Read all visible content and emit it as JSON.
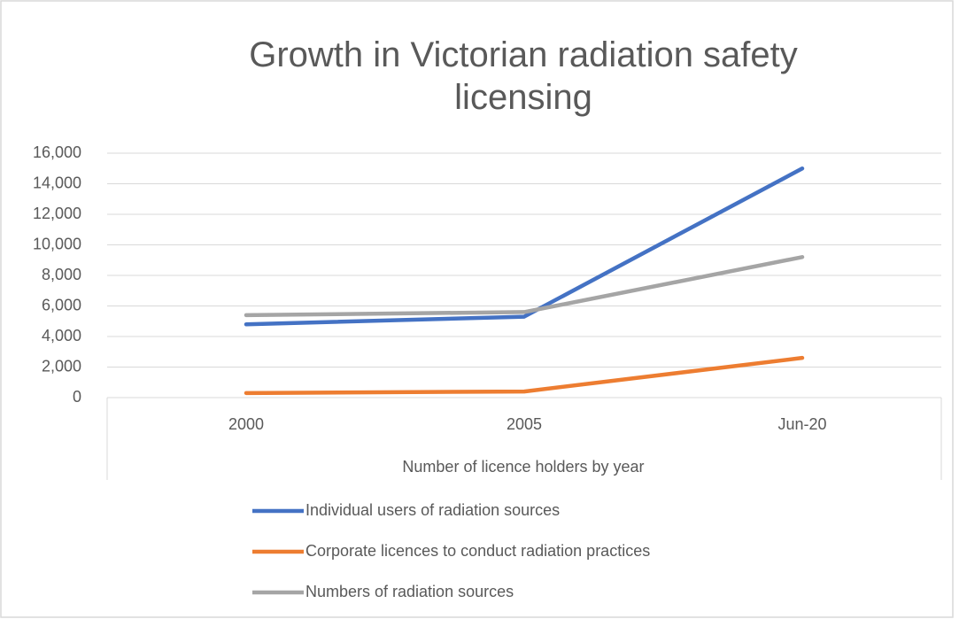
{
  "chart_data": {
    "type": "line",
    "title": "Growth in Victorian radiation safety licensing",
    "x_label": "Number of licence holders by year",
    "categories": [
      "2000",
      "2005",
      "Jun-20"
    ],
    "series": [
      {
        "name": "Individual users of radiation sources",
        "color": "#4472c4",
        "values": [
          4800,
          5300,
          15000
        ]
      },
      {
        "name": "Corporate licences to conduct radiation practices",
        "color": "#ed7d31",
        "values": [
          300,
          400,
          2600
        ]
      },
      {
        "name": "Numbers of radiation sources",
        "color": "#a5a5a5",
        "values": [
          5400,
          5600,
          9200
        ]
      }
    ],
    "ylim": [
      0,
      16000
    ],
    "yticks": [
      0,
      {
        "value": 2000,
        "label": "2,000"
      },
      {
        "value": 4000,
        "label": "4,000"
      },
      {
        "value": 6000,
        "label": "6,000"
      },
      {
        "value": 8000,
        "label": "8,000"
      },
      {
        "value": 10000,
        "label": "10,000"
      },
      {
        "value": 12000,
        "label": "12,000"
      },
      {
        "value": 14000,
        "label": "14,000"
      },
      {
        "value": 16000,
        "label": "16,000"
      }
    ],
    "grid": true,
    "legend": "bottom"
  }
}
